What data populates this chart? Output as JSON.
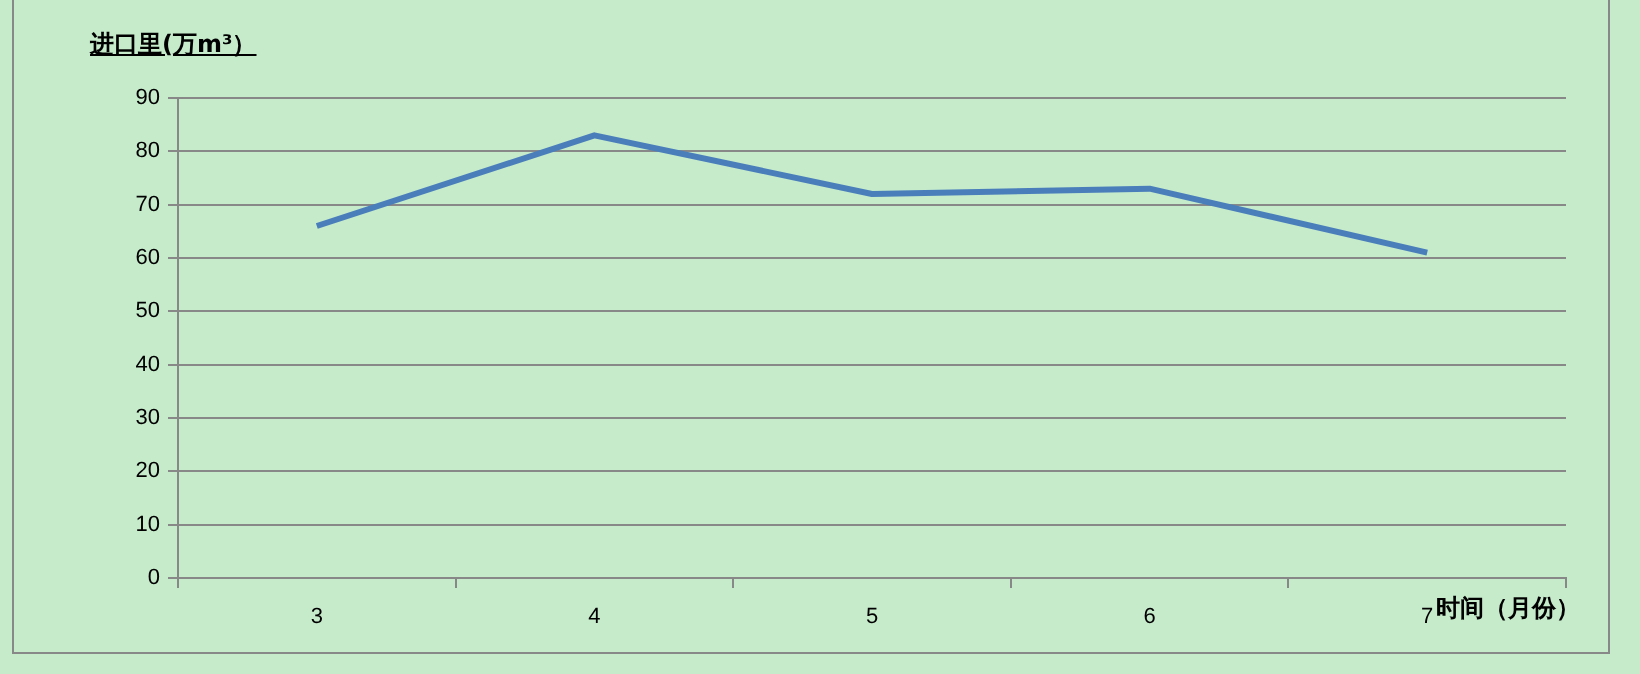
{
  "chart_data": {
    "type": "line",
    "ylabel": "进口里(万m³）",
    "xlabel": "时间（月份）",
    "categories": [
      "3",
      "4",
      "5",
      "6",
      "7"
    ],
    "series": [
      {
        "color": "#4a7ebb",
        "values": [
          66,
          83,
          72,
          73,
          61
        ]
      }
    ],
    "ylim": [
      0,
      90
    ],
    "yticks": [
      0,
      10,
      20,
      30,
      40,
      50,
      60,
      70,
      80,
      90
    ],
    "grid": "y",
    "legend": false,
    "marker": "none",
    "line_style": "solid"
  }
}
